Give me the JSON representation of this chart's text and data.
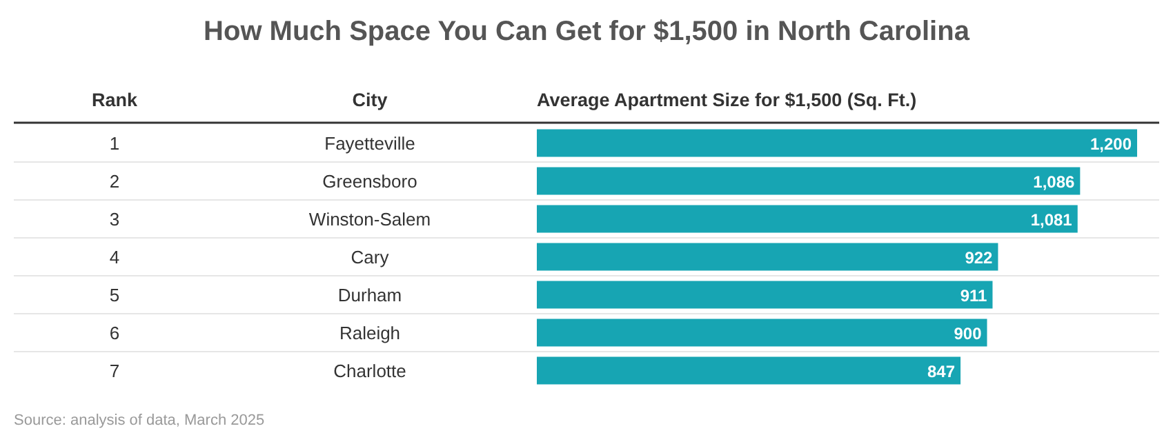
{
  "chart_data": {
    "type": "bar",
    "orientation": "horizontal",
    "title": "How Much Space You Can Get for $1,500 in North Carolina",
    "xlabel": "Average Apartment Size for $1,500 (Sq. Ft.)",
    "ylabel": "City",
    "categories": [
      "Fayetteville",
      "Greensboro",
      "Winston-Salem",
      "Cary",
      "Durham",
      "Raleigh",
      "Charlotte"
    ],
    "values": [
      1200,
      1086,
      1081,
      922,
      911,
      900,
      847
    ],
    "value_labels": [
      "1,200",
      "1,086",
      "1,081",
      "922",
      "911",
      "900",
      "847"
    ],
    "color": "#17a5b3",
    "data_labels": true,
    "annotations": [
      "Rank",
      "1",
      "2",
      "3",
      "4",
      "5",
      "6",
      "7",
      "Source: analysis of data, March 2025"
    ]
  }
}
